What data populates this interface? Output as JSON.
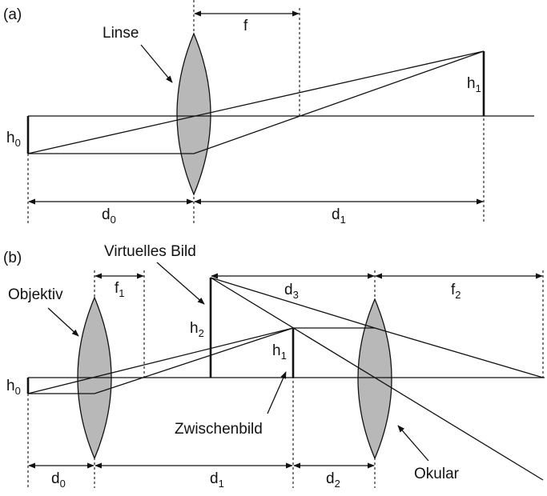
{
  "panel_a": {
    "label": "(a)",
    "lens": "Linse",
    "f": "f",
    "h0": {
      "base": "h",
      "sub": "0"
    },
    "h1": {
      "base": "h",
      "sub": "1"
    },
    "d0": {
      "base": "d",
      "sub": "0"
    },
    "d1": {
      "base": "d",
      "sub": "1"
    }
  },
  "panel_b": {
    "label": "(b)",
    "virtual_image": "Virtuelles Bild",
    "objective": "Objektiv",
    "intermediate_image": "Zwischenbild",
    "eyepiece": "Okular",
    "f1": {
      "base": "f",
      "sub": "1"
    },
    "f2": {
      "base": "f",
      "sub": "2"
    },
    "d3": {
      "base": "d",
      "sub": "3"
    },
    "h0": {
      "base": "h",
      "sub": "0"
    },
    "h1": {
      "base": "h",
      "sub": "1"
    },
    "h2": {
      "base": "h",
      "sub": "2"
    },
    "d0": {
      "base": "d",
      "sub": "0"
    },
    "d1": {
      "base": "d",
      "sub": "1"
    },
    "d2": {
      "base": "d",
      "sub": "2"
    }
  }
}
